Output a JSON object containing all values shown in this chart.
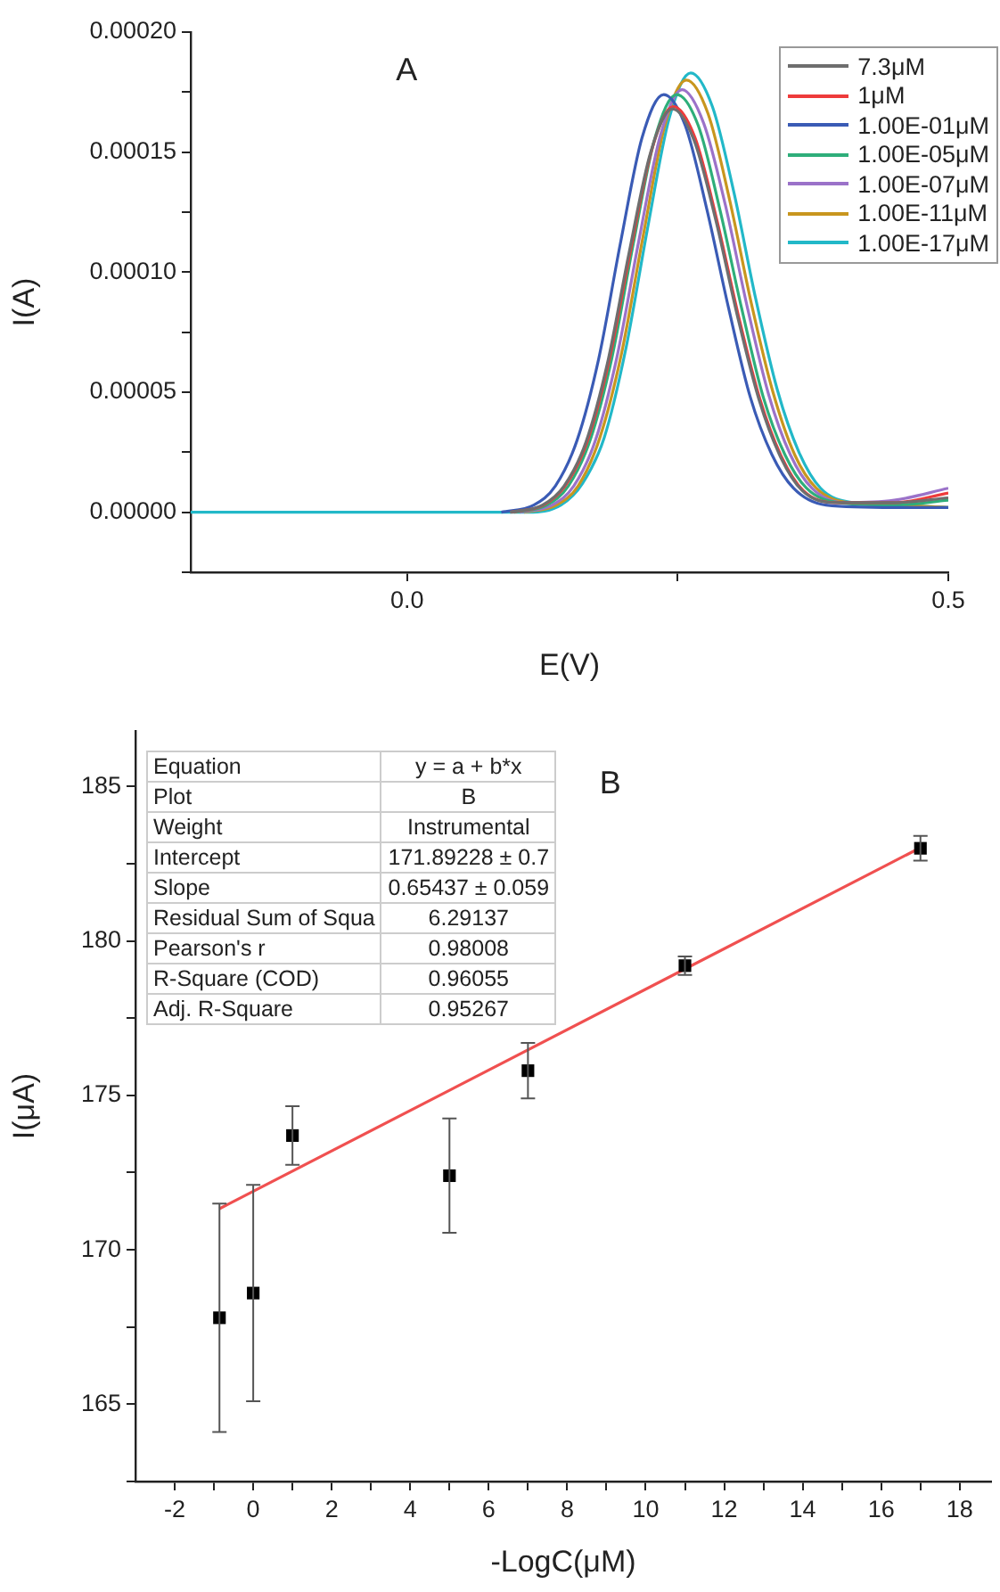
{
  "chart_data": [
    {
      "type": "line",
      "title": "A",
      "xlabel": "E(V)",
      "ylabel": "I(A)",
      "marker": "none",
      "legend": "top right",
      "xlim": [
        -0.2,
        0.5
      ],
      "xticks": [
        {
          "value": 0,
          "label": "0.0"
        },
        {
          "value": 0.25,
          "label": null
        },
        {
          "value": 0.5,
          "label": "0.5"
        }
      ],
      "ylim": [
        -2.5e-05,
        0.0002
      ],
      "yticks": [
        {
          "value": -2.5e-05,
          "label": null
        },
        {
          "value": 0,
          "label": "0.00000"
        },
        {
          "value": 2.5e-05,
          "label": null
        },
        {
          "value": 5e-05,
          "label": "0.00005"
        },
        {
          "value": 7.5e-05,
          "label": null
        },
        {
          "value": 0.0001,
          "label": "0.00010"
        },
        {
          "value": 0.000125,
          "label": null
        },
        {
          "value": 0.00015,
          "label": "0.00015"
        },
        {
          "value": 0.000175,
          "label": null
        },
        {
          "value": 0.0002,
          "label": "0.00020"
        }
      ],
      "series": [
        {
          "name": "7.3μM",
          "color": "#6e6e6e",
          "x": [
            0.095,
            0.125,
            0.145,
            0.165,
            0.185,
            0.205,
            0.225,
            0.245,
            0.265,
            0.285,
            0.305,
            0.325,
            0.345,
            0.365,
            0.395,
            0.45,
            0.5
          ],
          "values": [
            0,
            3e-06,
            1.1e-05,
            2.9e-05,
            6.2e-05,
            0.000108,
            0.00015,
            0.000168,
            0.000155,
            0.000122,
            8.2e-05,
            4.7e-05,
            2.3e-05,
            9e-06,
            4e-06,
            4e-06,
            6e-06
          ]
        },
        {
          "name": "1μM",
          "color": "#ee3b3b",
          "x": [
            0.096,
            0.126,
            0.146,
            0.166,
            0.186,
            0.206,
            0.226,
            0.246,
            0.266,
            0.286,
            0.306,
            0.326,
            0.346,
            0.366,
            0.396,
            0.45,
            0.5
          ],
          "values": [
            0,
            3e-06,
            1.1e-05,
            2.9e-05,
            6.2e-05,
            0.000108,
            0.000151,
            0.000169,
            0.000156,
            0.000122,
            8.2e-05,
            4.7e-05,
            2.3e-05,
            9e-06,
            4e-06,
            4e-06,
            8e-06
          ]
        },
        {
          "name": "1.00E-01μM",
          "color": "#3a5bb5",
          "x": [
            0.087,
            0.117,
            0.137,
            0.157,
            0.177,
            0.197,
            0.217,
            0.237,
            0.257,
            0.277,
            0.297,
            0.317,
            0.337,
            0.357,
            0.387,
            0.45,
            0.5
          ],
          "values": [
            0,
            3e-06,
            1.1e-05,
            3e-05,
            6.4e-05,
            0.000112,
            0.000156,
            0.000174,
            0.000161,
            0.000126,
            8.5e-05,
            4.8e-05,
            2.4e-05,
            1e-05,
            3e-06,
            2e-06,
            2e-06
          ]
        },
        {
          "name": "1.00E-05μM",
          "color": "#2eae7a",
          "x": [
            0.099,
            0.129,
            0.149,
            0.169,
            0.189,
            0.209,
            0.229,
            0.249,
            0.269,
            0.289,
            0.309,
            0.329,
            0.349,
            0.369,
            0.399,
            0.45,
            0.5
          ],
          "values": [
            0,
            3e-06,
            1.1e-05,
            3e-05,
            6.4e-05,
            0.000112,
            0.000156,
            0.000174,
            0.000161,
            0.000126,
            8.5e-05,
            4.8e-05,
            2.4e-05,
            1e-05,
            4e-06,
            3e-06,
            5e-06
          ]
        },
        {
          "name": "1.00E-07μM",
          "color": "#9b72c9",
          "x": [
            0.104,
            0.134,
            0.154,
            0.174,
            0.194,
            0.214,
            0.234,
            0.254,
            0.274,
            0.294,
            0.314,
            0.334,
            0.354,
            0.374,
            0.404,
            0.45,
            0.5
          ],
          "values": [
            0,
            3e-06,
            1.1e-05,
            3e-05,
            6.5e-05,
            0.000113,
            0.000157,
            0.000176,
            0.000162,
            0.000128,
            8.6e-05,
            4.9e-05,
            2.4e-05,
            1e-05,
            4e-06,
            5e-06,
            1e-05
          ]
        },
        {
          "name": "1.00E-11μM",
          "color": "#c8961e",
          "x": [
            0.108,
            0.138,
            0.158,
            0.178,
            0.198,
            0.218,
            0.238,
            0.258,
            0.278,
            0.298,
            0.318,
            0.338,
            0.358,
            0.378,
            0.408,
            0.45,
            0.5
          ],
          "values": [
            0,
            3e-06,
            1.1e-05,
            3.1e-05,
            6.6e-05,
            0.000115,
            0.000161,
            0.00018,
            0.000166,
            0.00013,
            8.7e-05,
            5e-05,
            2.4e-05,
            1e-05,
            4e-06,
            3e-06,
            2e-06
          ]
        },
        {
          "name": "1.00E-17μM",
          "color": "#22b8c8",
          "x": [
            -0.2,
            0.0,
            0.112,
            0.142,
            0.162,
            0.182,
            0.202,
            0.222,
            0.242,
            0.262,
            0.282,
            0.302,
            0.322,
            0.342,
            0.362,
            0.382,
            0.412,
            0.45,
            0.5
          ],
          "values": [
            0,
            0,
            0,
            3e-06,
            1.2e-05,
            3.1e-05,
            6.8e-05,
            0.000118,
            0.000164,
            0.000183,
            0.000169,
            0.000133,
            8.9e-05,
            5.1e-05,
            2.5e-05,
            1e-05,
            4e-06,
            3e-06,
            2e-06
          ]
        }
      ]
    },
    {
      "type": "scatter",
      "title": "B",
      "xlabel": "-LogC(μM)",
      "ylabel": "I(μA)",
      "marker": "square",
      "xlim": [
        -3,
        18.8
      ],
      "xticks": [
        -2,
        {
          "value": -1,
          "label": null
        },
        0,
        {
          "value": 1,
          "label": null
        },
        2,
        {
          "value": 3,
          "label": null
        },
        4,
        {
          "value": 5,
          "label": null
        },
        6,
        {
          "value": 7,
          "label": null
        },
        8,
        {
          "value": 9,
          "label": null
        },
        10,
        {
          "value": 11,
          "label": null
        },
        12,
        {
          "value": 13,
          "label": null
        },
        14,
        {
          "value": 15,
          "label": null
        },
        16,
        {
          "value": 17,
          "label": null
        },
        18
      ],
      "ylim": [
        162.5,
        186.8
      ],
      "yticks": [
        {
          "value": 162.5,
          "label": null
        },
        165,
        {
          "value": 167.5,
          "label": null
        },
        170,
        {
          "value": 172.5,
          "label": null
        },
        175,
        {
          "value": 177.5,
          "label": null
        },
        180,
        {
          "value": 182.5,
          "label": null
        },
        185
      ],
      "annotations": [
        "Equation",
        "y = a + b*x",
        "Plot",
        "B",
        "Weight",
        "Instrumental",
        "Intercept",
        "171.89228 ± 0.7",
        "Slope",
        "0.65437 ± 0.059",
        "Residual Sum of Squa",
        "6.29137",
        "Pearson's r",
        "0.98008",
        "R-Square (COD)",
        "0.96055",
        "Adj. R-Square",
        "0.95267"
      ],
      "series": [
        {
          "color": "#000000",
          "x": [
            -0.86,
            0,
            1,
            5,
            7,
            11,
            17
          ],
          "values": [
            167.8,
            168.6,
            173.7,
            172.4,
            175.8,
            179.2,
            183.0
          ],
          "errors": [
            3.7,
            3.5,
            0.95,
            1.85,
            0.9,
            0.3,
            0.4
          ]
        },
        {
          "type": "line",
          "color": "#f05050",
          "marker": "none",
          "x": [
            -0.86,
            17
          ],
          "values": [
            171.33,
            183.02
          ]
        }
      ]
    }
  ]
}
